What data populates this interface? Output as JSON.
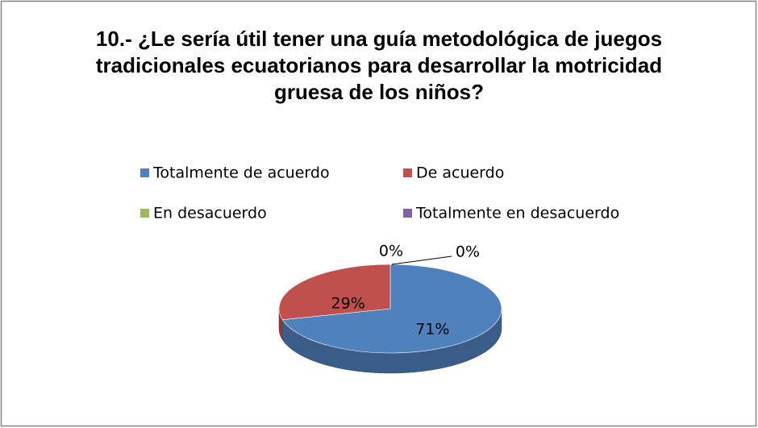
{
  "chart_data": {
    "type": "pie",
    "title": "10.- ¿Le sería útil  tener una guía metodológica  de juegos tradicionales ecuatorianos para desarrollar la motricidad gruesa de los niños?",
    "categories": [
      "Totalmente de acuerdo",
      "De acuerdo",
      "En desacuerdo",
      "Totalmente en desacuerdo"
    ],
    "values": [
      71,
      29,
      0,
      0
    ],
    "value_labels": [
      "71%",
      "29%",
      "0%",
      "0%"
    ],
    "colors": [
      "#4f81bd",
      "#c0504d",
      "#9bbb59",
      "#8064a2"
    ],
    "legend": "top"
  }
}
